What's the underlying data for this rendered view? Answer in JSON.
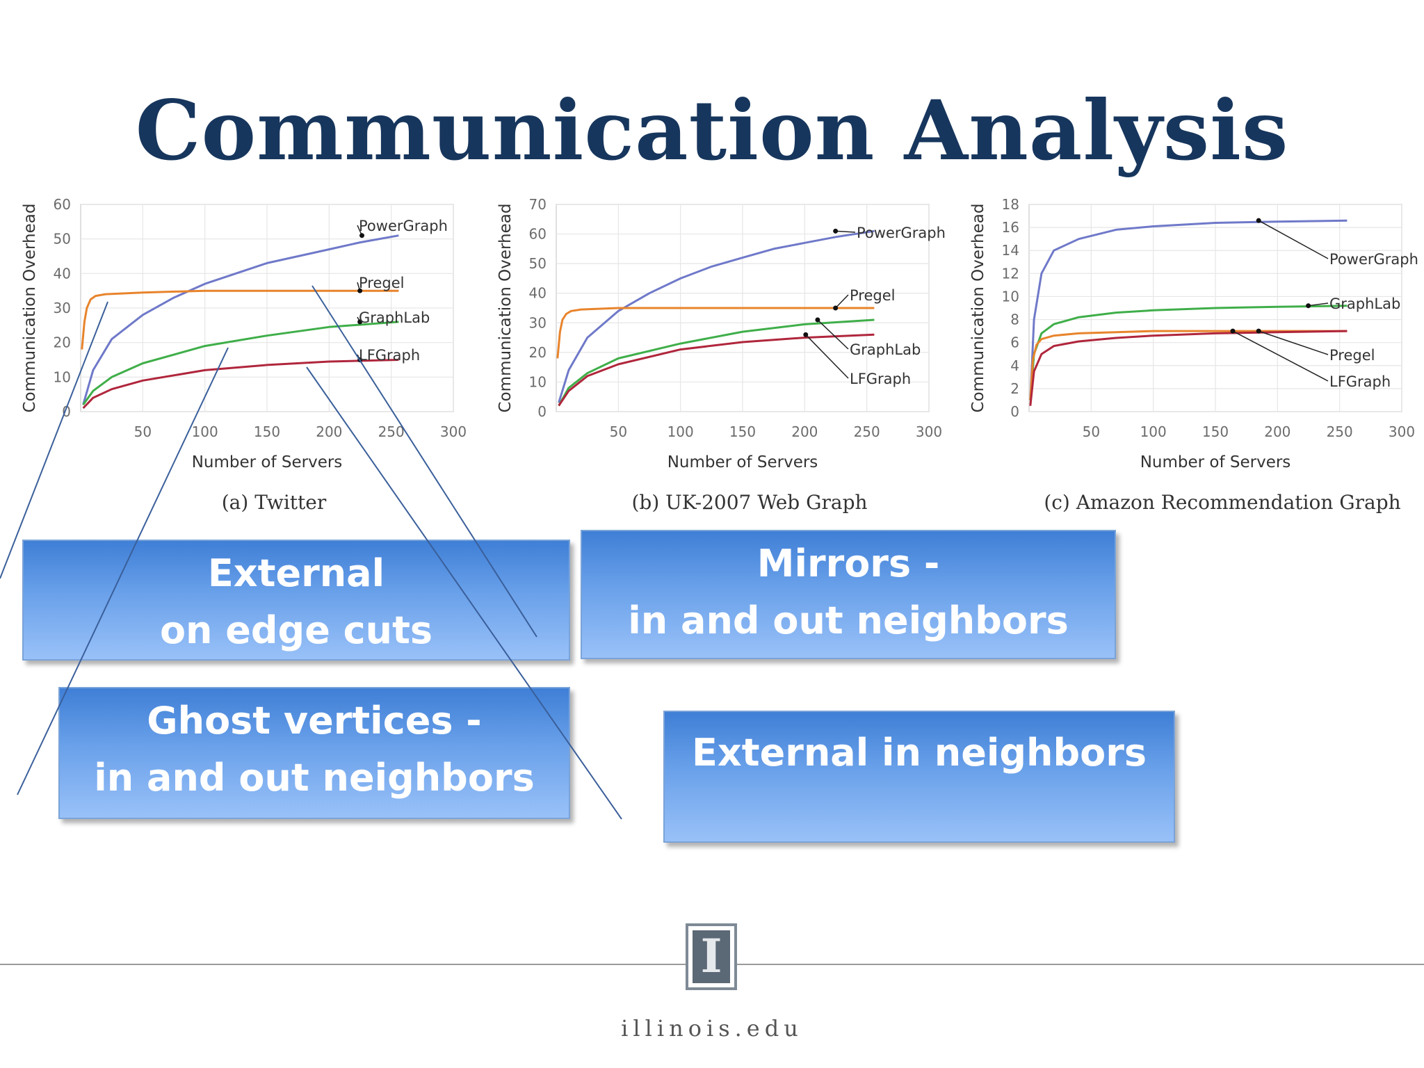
{
  "slide": {
    "title": "Communication Analysis",
    "footer_url": "illinois.edu",
    "logo_letter": "I"
  },
  "colors": {
    "title": "#17365d",
    "PowerGraph": "#6f79c9",
    "Pregel": "#e8842c",
    "GraphLab": "#3fae49",
    "LFGraph": "#b0263c",
    "callout_top": "#3f7fd6",
    "callout_bottom": "#99c1f8"
  },
  "callouts": {
    "external_edge": [
      "External",
      "on edge cuts"
    ],
    "mirrors": [
      "Mirrors -",
      "in and out neighbors"
    ],
    "ghost": [
      "Ghost vertices  -",
      "in and out neighbors"
    ],
    "external_in": [
      "External in neighbors"
    ]
  },
  "chart_data": [
    {
      "type": "line",
      "caption": "(a) Twitter",
      "xlabel": "Number of Servers",
      "ylabel": "Communication Overhead",
      "xlim": [
        0,
        300
      ],
      "ylim": [
        0,
        60
      ],
      "xticks": [
        50,
        100,
        150,
        200,
        250,
        300
      ],
      "yticks": [
        0,
        10,
        20,
        30,
        40,
        50,
        60
      ],
      "grid": true,
      "series": [
        {
          "name": "PowerGraph",
          "x": [
            2,
            10,
            25,
            50,
            75,
            100,
            125,
            150,
            175,
            200,
            225,
            256
          ],
          "y": [
            2,
            12,
            21,
            28,
            33,
            37,
            40,
            43,
            45,
            47,
            49,
            51
          ]
        },
        {
          "name": "Pregel",
          "x": [
            1,
            3,
            5,
            8,
            12,
            20,
            50,
            100,
            150,
            200,
            256
          ],
          "y": [
            18,
            26,
            30,
            32.5,
            33.5,
            34,
            34.5,
            35,
            35,
            35,
            35
          ]
        },
        {
          "name": "GraphLab",
          "x": [
            2,
            10,
            25,
            50,
            100,
            150,
            200,
            256
          ],
          "y": [
            2,
            6,
            10,
            14,
            19,
            22,
            24.5,
            26
          ]
        },
        {
          "name": "LFGraph",
          "x": [
            2,
            10,
            25,
            50,
            100,
            150,
            200,
            256
          ],
          "y": [
            1,
            4,
            6.5,
            9,
            12,
            13.5,
            14.5,
            15
          ]
        }
      ],
      "annotations": [
        {
          "series": "PowerGraph",
          "text": "PowerGraph"
        },
        {
          "series": "Pregel",
          "text": "Pregel"
        },
        {
          "series": "GraphLab",
          "text": "GraphLab"
        },
        {
          "series": "LFGraph",
          "text": "LFGraph"
        }
      ]
    },
    {
      "type": "line",
      "caption": "(b) UK-2007 Web Graph",
      "xlabel": "Number of Servers",
      "ylabel": "Communication Overhead",
      "xlim": [
        0,
        300
      ],
      "ylim": [
        0,
        70
      ],
      "xticks": [
        50,
        100,
        150,
        200,
        250,
        300
      ],
      "yticks": [
        0,
        10,
        20,
        30,
        40,
        50,
        60,
        70
      ],
      "grid": true,
      "series": [
        {
          "name": "PowerGraph",
          "x": [
            2,
            10,
            25,
            50,
            75,
            100,
            125,
            150,
            175,
            200,
            225,
            256
          ],
          "y": [
            3,
            14,
            25,
            34,
            40,
            45,
            49,
            52,
            55,
            57,
            59,
            61
          ]
        },
        {
          "name": "Pregel",
          "x": [
            1,
            3,
            5,
            8,
            12,
            20,
            50,
            100,
            150,
            200,
            256
          ],
          "y": [
            18,
            27,
            31,
            33,
            34,
            34.5,
            35,
            35,
            35,
            35,
            35
          ]
        },
        {
          "name": "GraphLab",
          "x": [
            2,
            10,
            25,
            50,
            100,
            150,
            200,
            256
          ],
          "y": [
            2,
            8,
            13,
            18,
            23,
            27,
            29.5,
            31
          ]
        },
        {
          "name": "LFGraph",
          "x": [
            2,
            10,
            25,
            50,
            100,
            150,
            200,
            256
          ],
          "y": [
            2,
            7,
            12,
            16,
            21,
            23.5,
            25,
            26
          ]
        }
      ],
      "annotations": [
        {
          "series": "PowerGraph",
          "text": "PowerGraph"
        },
        {
          "series": "Pregel",
          "text": "Pregel"
        },
        {
          "series": "GraphLab",
          "text": "GraphLab"
        },
        {
          "series": "LFGraph",
          "text": "LFGraph"
        }
      ]
    },
    {
      "type": "line",
      "caption": "(c) Amazon Recommendation Graph",
      "xlabel": "Number of Servers",
      "ylabel": "Communication Overhead",
      "xlim": [
        0,
        300
      ],
      "ylim": [
        0,
        18
      ],
      "xticks": [
        50,
        100,
        150,
        200,
        250,
        300
      ],
      "yticks": [
        0,
        2,
        4,
        6,
        8,
        10,
        12,
        14,
        16,
        18
      ],
      "grid": true,
      "series": [
        {
          "name": "PowerGraph",
          "x": [
            1,
            4,
            10,
            20,
            40,
            70,
            100,
            150,
            200,
            256
          ],
          "y": [
            1,
            8,
            12,
            14,
            15,
            15.8,
            16.1,
            16.4,
            16.5,
            16.6
          ]
        },
        {
          "name": "GraphLab",
          "x": [
            1,
            4,
            10,
            20,
            40,
            70,
            100,
            150,
            200,
            256
          ],
          "y": [
            1,
            5,
            6.8,
            7.6,
            8.2,
            8.6,
            8.8,
            9,
            9.1,
            9.2
          ]
        },
        {
          "name": "Pregel",
          "x": [
            1,
            3,
            6,
            10,
            20,
            40,
            70,
            100,
            150,
            200,
            256
          ],
          "y": [
            1,
            4.5,
            5.8,
            6.3,
            6.6,
            6.8,
            6.9,
            7,
            7,
            7,
            7
          ]
        },
        {
          "name": "LFGraph",
          "x": [
            1,
            4,
            10,
            20,
            40,
            70,
            100,
            150,
            200,
            256
          ],
          "y": [
            0.5,
            3.5,
            5,
            5.7,
            6.1,
            6.4,
            6.6,
            6.8,
            6.9,
            7
          ]
        }
      ],
      "annotations": [
        {
          "series": "PowerGraph",
          "text": "PowerGraph"
        },
        {
          "series": "GraphLab",
          "text": "GraphLab"
        },
        {
          "series": "Pregel",
          "text": "Pregel"
        },
        {
          "series": "LFGraph",
          "text": "LFGraph"
        }
      ]
    }
  ]
}
